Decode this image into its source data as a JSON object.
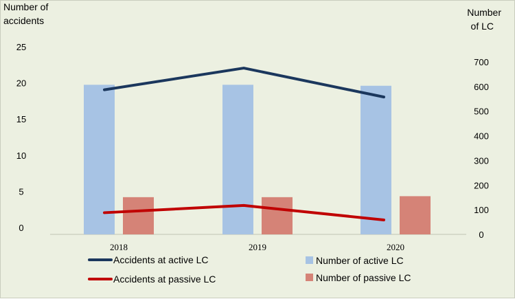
{
  "chart_data": {
    "type": "bar",
    "categories": [
      "2018",
      "2019",
      "2020"
    ],
    "left_axis": {
      "label_lines": [
        "Number of",
        "accidents"
      ],
      "ylim": [
        0,
        25
      ],
      "ticks": [
        0,
        5,
        10,
        15,
        20,
        25
      ]
    },
    "right_axis": {
      "label_lines": [
        "Number",
        "of LC"
      ],
      "ylim": [
        0,
        700
      ],
      "ticks": [
        0,
        100,
        200,
        300,
        400,
        500,
        600,
        700
      ]
    },
    "bar_series": [
      {
        "name": "Number of active LC",
        "color": "#a7c3e4",
        "values": [
          607,
          607,
          603
        ]
      },
      {
        "name": "Number of passive LC",
        "color": "#d58377",
        "values": [
          151,
          151,
          155
        ]
      }
    ],
    "line_series": [
      {
        "name": "Accidents at active LC",
        "color": "#1b375d",
        "values": [
          20,
          23,
          19
        ]
      },
      {
        "name": "Accidents at passive LC",
        "color": "#c00000",
        "values": [
          3,
          4,
          2
        ]
      }
    ],
    "grid": false,
    "legend_position": "bottom"
  }
}
